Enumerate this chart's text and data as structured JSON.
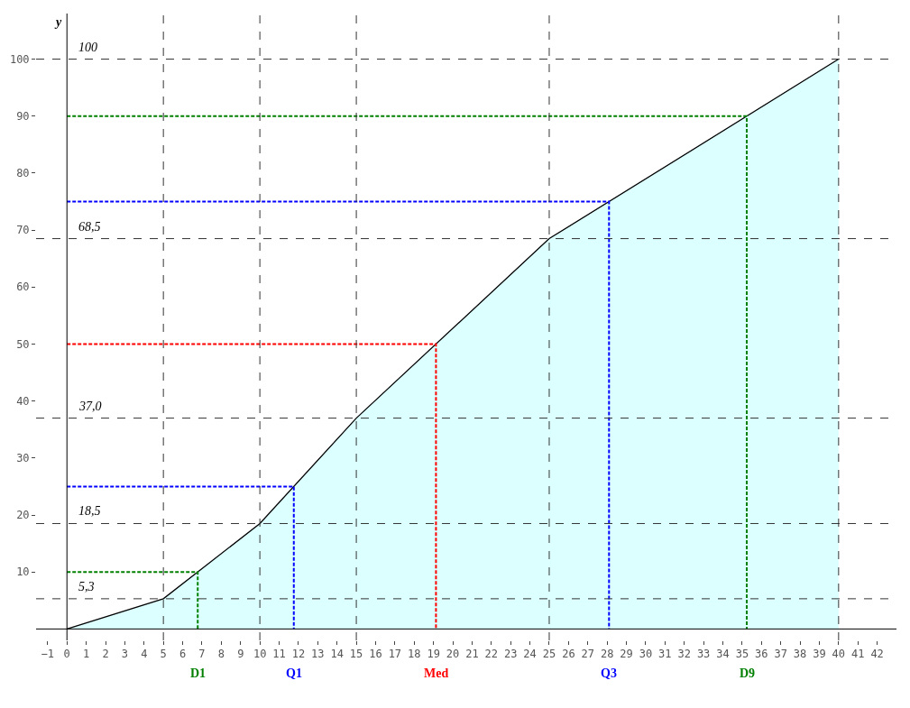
{
  "chart_data": {
    "type": "area",
    "ylabel": "y",
    "xlim": [
      -1.6,
      43
    ],
    "ylim": [
      -2,
      108
    ],
    "xticks": [
      {
        "value": -1,
        "label": "−1"
      },
      0,
      1,
      2,
      3,
      4,
      5,
      6,
      7,
      8,
      9,
      10,
      11,
      12,
      13,
      14,
      15,
      16,
      17,
      18,
      19,
      20,
      21,
      22,
      23,
      24,
      25,
      26,
      27,
      28,
      29,
      30,
      31,
      32,
      33,
      34,
      35,
      36,
      37,
      38,
      39,
      40,
      41,
      42
    ],
    "yticks": [
      10,
      20,
      30,
      40,
      50,
      60,
      70,
      80,
      90,
      100
    ],
    "marker": "none",
    "series": [
      {
        "color": "#dcffff",
        "x": [
          0,
          5,
          10,
          15,
          25,
          40
        ],
        "values": [
          0,
          5.3,
          18.5,
          37.0,
          68.5,
          100
        ]
      },
      {
        "type": "line",
        "color": "#008000",
        "line_style": "dashed",
        "x": [
          0,
          6.78,
          6.78
        ],
        "values": [
          10,
          10,
          0
        ]
      },
      {
        "type": "line",
        "color": "#0000ff",
        "line_style": "dashed",
        "x": [
          0,
          11.76,
          11.76
        ],
        "values": [
          25,
          25,
          0
        ]
      },
      {
        "type": "line",
        "color": "#ff0000",
        "line_style": "dashed",
        "x": [
          0,
          19.13,
          19.13
        ],
        "values": [
          50,
          50,
          0
        ]
      },
      {
        "type": "line",
        "color": "#0000ff",
        "line_style": "dashed",
        "x": [
          0,
          28.1,
          28.1
        ],
        "values": [
          75,
          75,
          0
        ]
      },
      {
        "type": "line",
        "color": "#008000",
        "line_style": "dashed",
        "x": [
          0,
          35.24,
          35.24
        ],
        "values": [
          90,
          90,
          0
        ]
      }
    ],
    "ref_lines": [
      {
        "axis": "y",
        "value": 5.3,
        "label": "5,3"
      },
      {
        "axis": "y",
        "value": 18.5,
        "label": "18,5"
      },
      {
        "axis": "y",
        "value": 37.0,
        "label": "37,0"
      },
      {
        "axis": "y",
        "value": 68.5,
        "label": "68,5"
      },
      {
        "axis": "y",
        "value": 100,
        "label": "100"
      },
      {
        "axis": "x",
        "value": 5
      },
      {
        "axis": "x",
        "value": 10
      },
      {
        "axis": "x",
        "value": 15
      },
      {
        "axis": "x",
        "value": 25
      },
      {
        "axis": "x",
        "value": 40
      }
    ],
    "annotations": [
      {
        "text": "D1",
        "x": 6.78,
        "y": 0
      },
      {
        "text": "Q1",
        "x": 11.76,
        "y": 0
      },
      {
        "text": "Med",
        "x": 19.13,
        "y": 0
      },
      {
        "text": "Q3",
        "x": 28.1,
        "y": 0
      },
      {
        "text": "D9",
        "x": 35.24,
        "y": 0
      }
    ]
  }
}
